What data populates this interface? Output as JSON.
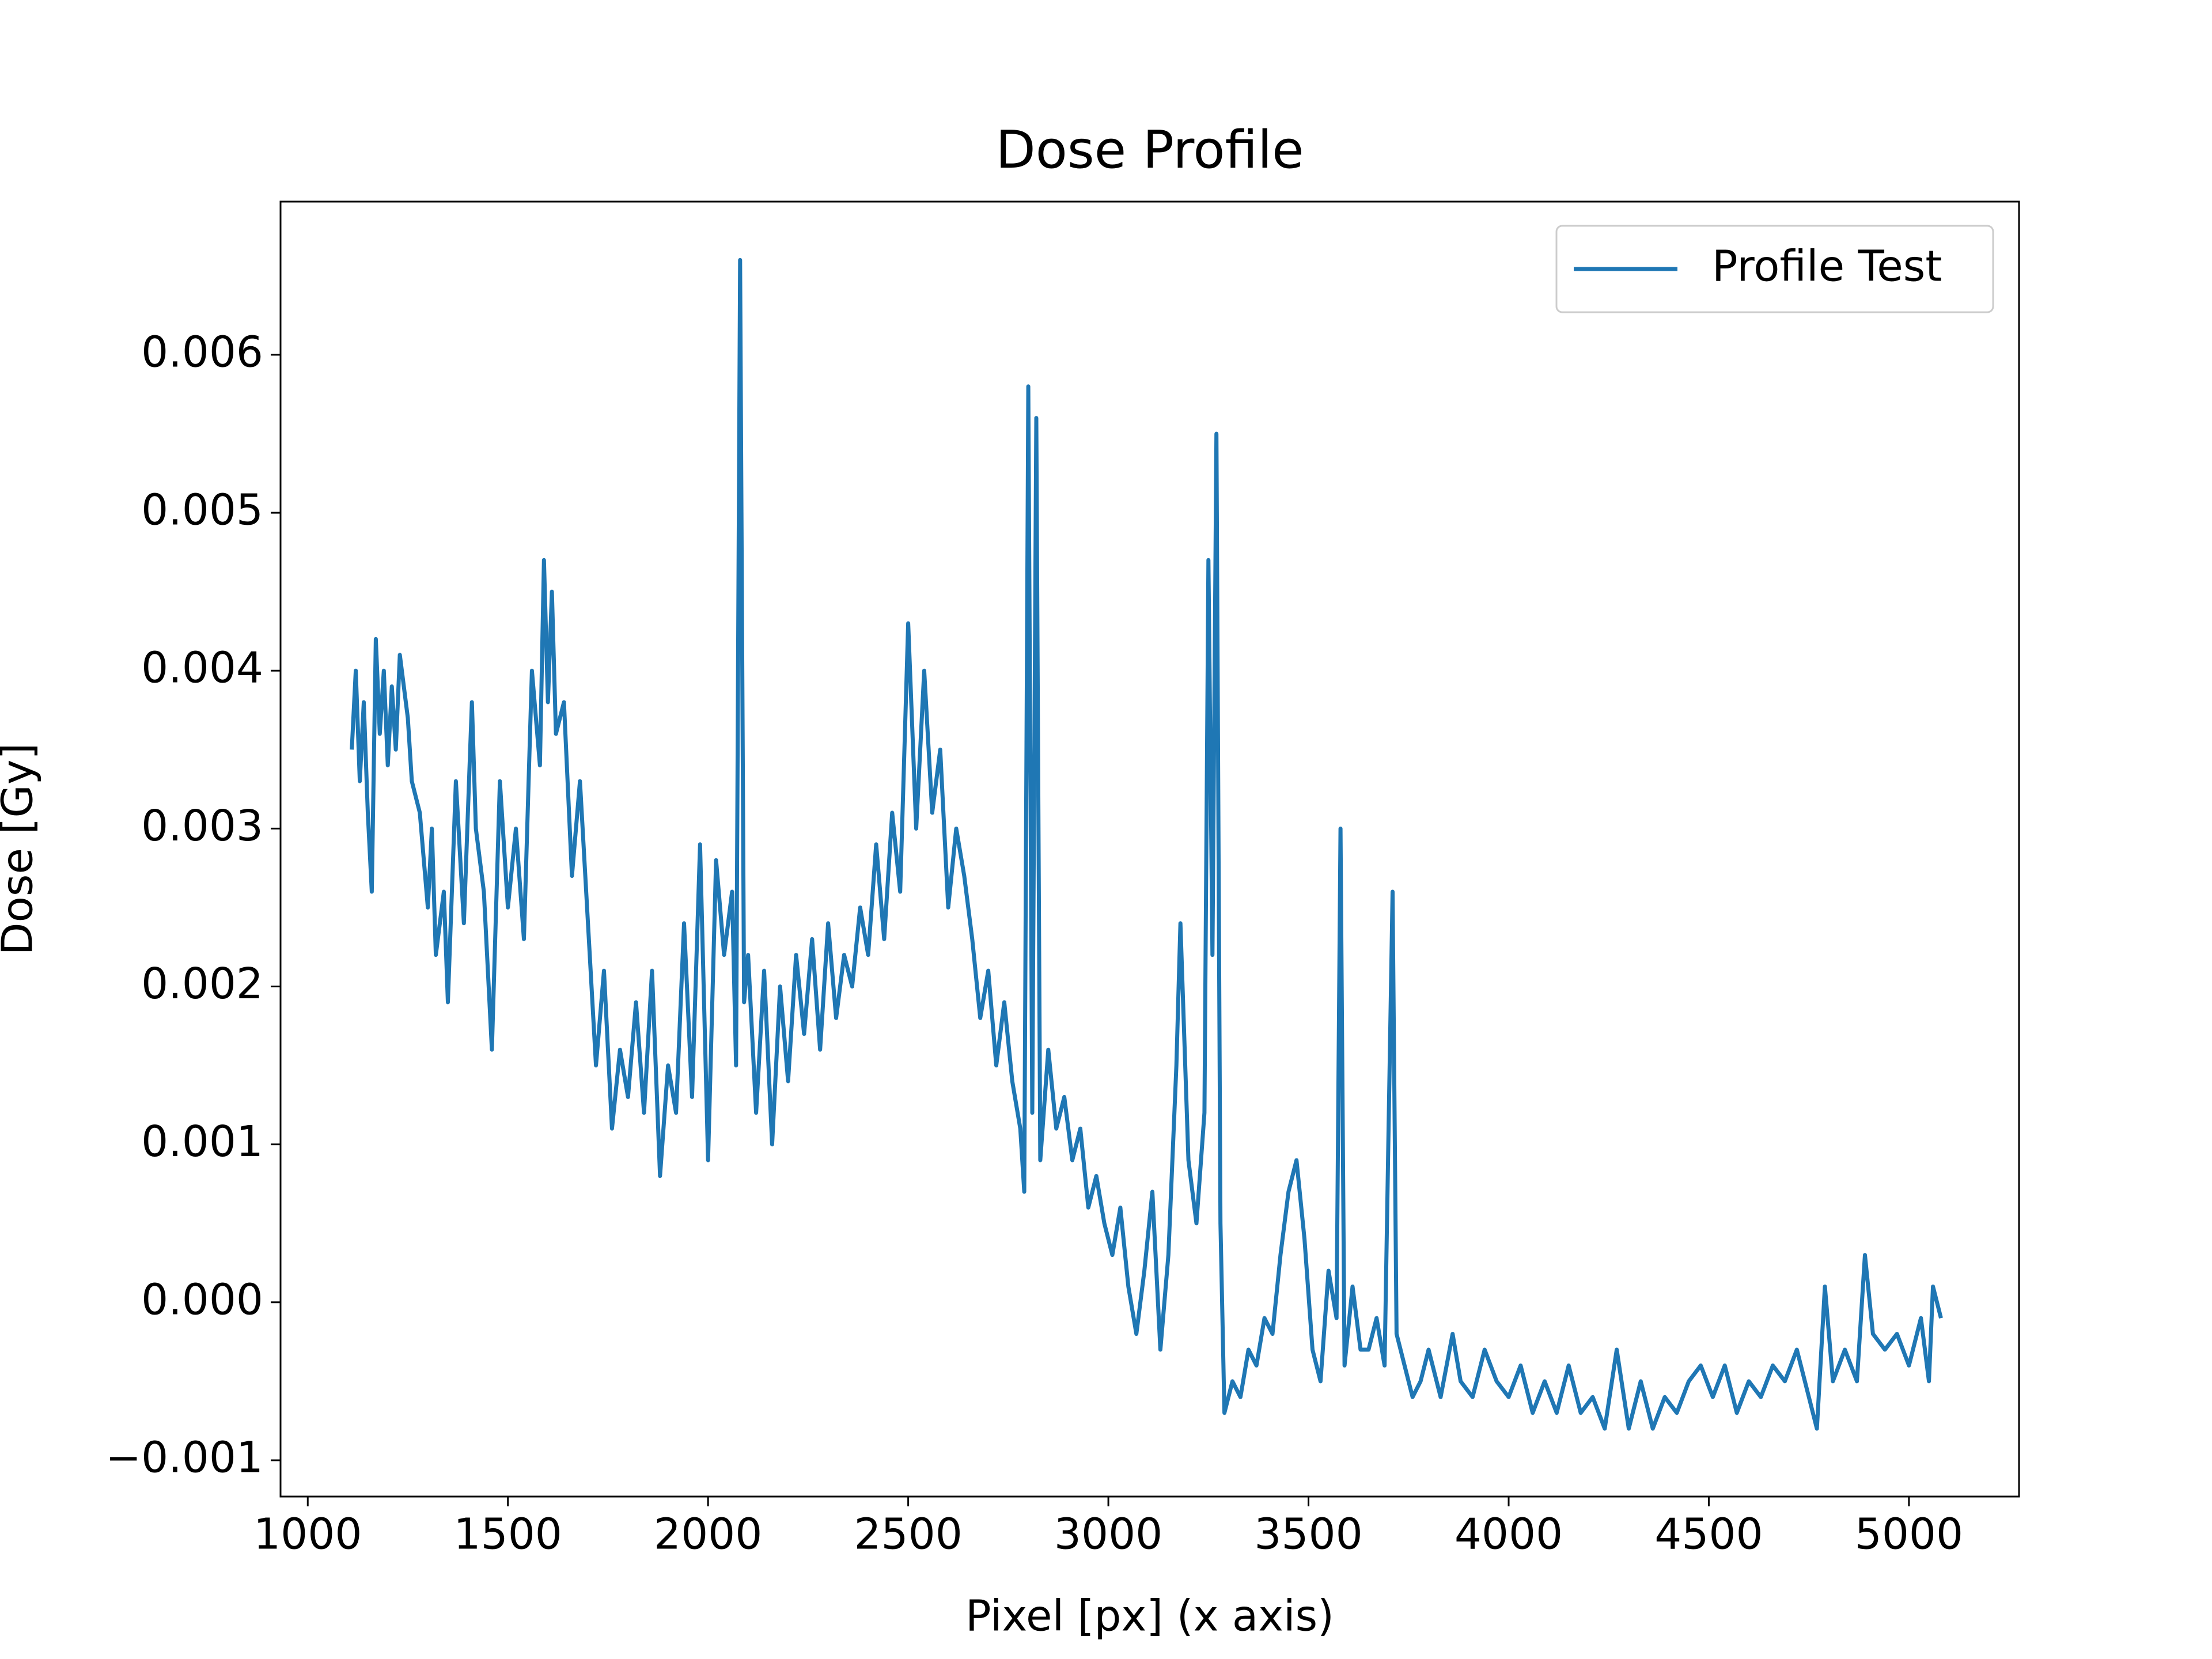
{
  "chart_data": {
    "type": "line",
    "title": "Dose Profile",
    "x_label": "Pixel [px] (x axis)",
    "y_label": "Dose [Gy]",
    "x": [
      1110,
      1120,
      1130,
      1140,
      1150,
      1160,
      1170,
      1180,
      1190,
      1200,
      1210,
      1220,
      1230,
      1250,
      1260,
      1280,
      1300,
      1310,
      1320,
      1340,
      1350,
      1370,
      1390,
      1410,
      1420,
      1440,
      1460,
      1480,
      1500,
      1520,
      1540,
      1560,
      1580,
      1590,
      1600,
      1610,
      1620,
      1640,
      1660,
      1680,
      1700,
      1720,
      1740,
      1760,
      1780,
      1800,
      1820,
      1840,
      1860,
      1880,
      1900,
      1920,
      1940,
      1960,
      1980,
      2000,
      2020,
      2040,
      2060,
      2070,
      2080,
      2090,
      2100,
      2120,
      2140,
      2160,
      2180,
      2200,
      2220,
      2240,
      2260,
      2280,
      2300,
      2320,
      2340,
      2360,
      2380,
      2400,
      2420,
      2440,
      2460,
      2480,
      2500,
      2520,
      2540,
      2560,
      2580,
      2600,
      2620,
      2640,
      2660,
      2680,
      2700,
      2720,
      2740,
      2760,
      2780,
      2790,
      2800,
      2810,
      2820,
      2830,
      2850,
      2870,
      2890,
      2910,
      2930,
      2950,
      2970,
      2990,
      3010,
      3030,
      3050,
      3070,
      3090,
      3110,
      3130,
      3150,
      3170,
      3180,
      3200,
      3220,
      3240,
      3250,
      3260,
      3270,
      3280,
      3290,
      3310,
      3330,
      3350,
      3370,
      3390,
      3410,
      3430,
      3450,
      3470,
      3490,
      3510,
      3530,
      3550,
      3570,
      3580,
      3590,
      3610,
      3630,
      3650,
      3670,
      3690,
      3710,
      3720,
      3740,
      3760,
      3780,
      3800,
      3830,
      3860,
      3880,
      3910,
      3940,
      3970,
      4000,
      4030,
      4060,
      4090,
      4120,
      4150,
      4180,
      4210,
      4240,
      4270,
      4300,
      4330,
      4360,
      4390,
      4420,
      4450,
      4480,
      4510,
      4540,
      4570,
      4600,
      4630,
      4660,
      4690,
      4720,
      4750,
      4770,
      4790,
      4810,
      4840,
      4870,
      4890,
      4910,
      4940,
      4970,
      5000,
      5030,
      5050,
      5060,
      5080
    ],
    "series": [
      {
        "name": "Profile Test",
        "color": "#1f77b4",
        "values": [
          0.0035,
          0.004,
          0.0033,
          0.0038,
          0.0031,
          0.0026,
          0.0042,
          0.0036,
          0.004,
          0.0034,
          0.0039,
          0.0035,
          0.0041,
          0.0037,
          0.0033,
          0.0031,
          0.0025,
          0.003,
          0.0022,
          0.0026,
          0.0019,
          0.0033,
          0.0024,
          0.0038,
          0.003,
          0.0026,
          0.0016,
          0.0033,
          0.0025,
          0.003,
          0.0023,
          0.004,
          0.0034,
          0.0047,
          0.0038,
          0.0045,
          0.0036,
          0.0038,
          0.0027,
          0.0033,
          0.0024,
          0.0015,
          0.0021,
          0.0011,
          0.0016,
          0.0013,
          0.0019,
          0.0012,
          0.0021,
          0.0008,
          0.0015,
          0.0012,
          0.0024,
          0.0013,
          0.0029,
          0.0009,
          0.0028,
          0.0022,
          0.0026,
          0.0015,
          0.0066,
          0.0019,
          0.0022,
          0.0012,
          0.0021,
          0.001,
          0.002,
          0.0014,
          0.0022,
          0.0017,
          0.0023,
          0.0016,
          0.0024,
          0.0018,
          0.0022,
          0.002,
          0.0025,
          0.0022,
          0.0029,
          0.0023,
          0.0031,
          0.0026,
          0.0043,
          0.003,
          0.004,
          0.0031,
          0.0035,
          0.0025,
          0.003,
          0.0027,
          0.0023,
          0.0018,
          0.0021,
          0.0015,
          0.0019,
          0.0014,
          0.0011,
          0.0007,
          0.0058,
          0.0012,
          0.0056,
          0.0009,
          0.0016,
          0.0011,
          0.0013,
          0.0009,
          0.0011,
          0.0006,
          0.0008,
          0.0005,
          0.0003,
          0.0006,
          0.0001,
          -0.0002,
          0.0002,
          0.0007,
          -0.0003,
          0.0003,
          0.0015,
          0.0024,
          0.0009,
          0.0005,
          0.0012,
          0.0047,
          0.0022,
          0.0055,
          0.0005,
          -0.0007,
          -0.0005,
          -0.0006,
          -0.0003,
          -0.0004,
          -0.0001,
          -0.0002,
          0.0003,
          0.0007,
          0.0009,
          0.0004,
          -0.0003,
          -0.0005,
          0.0002,
          -0.0001,
          0.003,
          -0.0004,
          0.0001,
          -0.0003,
          -0.0003,
          -0.0001,
          -0.0004,
          0.0026,
          -0.0002,
          -0.0004,
          -0.0006,
          -0.0005,
          -0.0003,
          -0.0006,
          -0.0002,
          -0.0005,
          -0.0006,
          -0.0003,
          -0.0005,
          -0.0006,
          -0.0004,
          -0.0007,
          -0.0005,
          -0.0007,
          -0.0004,
          -0.0007,
          -0.0006,
          -0.0008,
          -0.0003,
          -0.0008,
          -0.0005,
          -0.0008,
          -0.0006,
          -0.0007,
          -0.0005,
          -0.0004,
          -0.0006,
          -0.0004,
          -0.0007,
          -0.0005,
          -0.0006,
          -0.0004,
          -0.0005,
          -0.0003,
          -0.0006,
          -0.0008,
          0.0001,
          -0.0005,
          -0.0003,
          -0.0005,
          0.0003,
          -0.0002,
          -0.0003,
          -0.0002,
          -0.0004,
          -0.0001,
          -0.0005,
          0.0001,
          -0.0001
        ]
      }
    ],
    "xlim": [
      932,
      5275
    ],
    "ylim": [
      -0.00123,
      0.00697
    ],
    "xticks": [
      1000,
      1500,
      2000,
      2500,
      3000,
      3500,
      4000,
      4500,
      5000
    ],
    "yticks": [
      {
        "value": -0.001,
        "label": "−0.001"
      },
      {
        "value": 0,
        "label": "0.000"
      },
      0.001,
      0.002,
      0.003,
      0.004,
      0.005,
      0.006
    ],
    "legend": "upper right"
  }
}
